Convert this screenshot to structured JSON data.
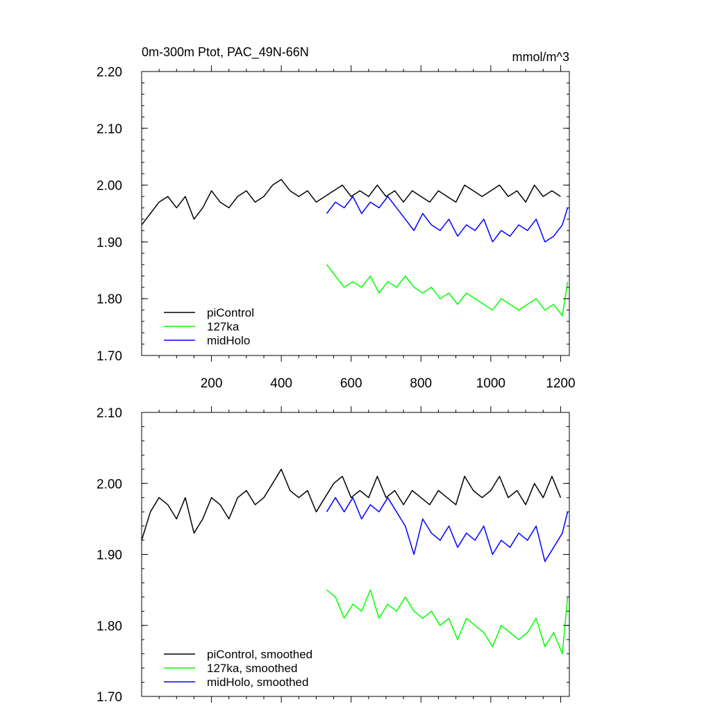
{
  "chart_data": [
    {
      "type": "line",
      "title": "0m-300m Ptot, PAC_49N-66N",
      "units": "mmol/m^3",
      "xlim": [
        0,
        1225
      ],
      "ylim": [
        1.7,
        2.2
      ],
      "xticks": [
        200,
        400,
        600,
        800,
        1000,
        1200
      ],
      "xtick_labels": [
        "200",
        "400",
        "600",
        "800",
        "1000",
        "1200"
      ],
      "yticks": [
        1.7,
        1.8,
        1.9,
        2.0,
        2.1,
        2.2
      ],
      "ytick_labels": [
        "1.70",
        "1.80",
        "1.90",
        "2.00",
        "2.10",
        "2.20"
      ],
      "legend": "bottom-left",
      "grid": false,
      "series": [
        {
          "name": "piControl",
          "color": "#000000",
          "x": [
            0,
            25,
            50,
            75,
            100,
            125,
            150,
            175,
            200,
            225,
            250,
            275,
            300,
            325,
            350,
            375,
            400,
            425,
            450,
            475,
            500,
            525,
            550,
            575,
            600,
            625,
            650,
            675,
            700,
            725,
            750,
            775,
            800,
            825,
            850,
            875,
            900,
            925,
            950,
            975,
            1000,
            1025,
            1050,
            1075,
            1100,
            1125,
            1150,
            1175,
            1200
          ],
          "y": [
            1.93,
            1.95,
            1.97,
            1.98,
            1.96,
            1.98,
            1.94,
            1.96,
            1.99,
            1.97,
            1.96,
            1.98,
            1.99,
            1.97,
            1.98,
            2.0,
            2.01,
            1.99,
            1.98,
            1.99,
            1.97,
            1.98,
            1.99,
            2.0,
            1.98,
            1.99,
            1.98,
            2.0,
            1.98,
            1.99,
            1.97,
            1.99,
            1.98,
            1.97,
            1.99,
            1.98,
            1.97,
            2.0,
            1.99,
            1.98,
            1.99,
            2.0,
            1.98,
            1.99,
            1.97,
            2.0,
            1.98,
            1.99,
            1.98
          ]
        },
        {
          "name": "127ka",
          "color": "#00ff00",
          "x": [
            530,
            555,
            580,
            605,
            630,
            655,
            680,
            705,
            730,
            755,
            780,
            805,
            830,
            855,
            880,
            905,
            930,
            955,
            980,
            1005,
            1030,
            1055,
            1080,
            1105,
            1130,
            1155,
            1180,
            1205,
            1220
          ],
          "y": [
            1.86,
            1.84,
            1.82,
            1.83,
            1.82,
            1.84,
            1.81,
            1.83,
            1.82,
            1.84,
            1.82,
            1.81,
            1.82,
            1.8,
            1.81,
            1.79,
            1.81,
            1.8,
            1.79,
            1.78,
            1.8,
            1.79,
            1.78,
            1.79,
            1.8,
            1.78,
            1.79,
            1.77,
            1.83
          ]
        },
        {
          "name": "midHolo",
          "color": "#0000ff",
          "x": [
            530,
            555,
            580,
            605,
            630,
            655,
            680,
            705,
            730,
            755,
            780,
            805,
            830,
            855,
            880,
            905,
            930,
            955,
            980,
            1005,
            1030,
            1055,
            1080,
            1105,
            1130,
            1155,
            1180,
            1205,
            1220
          ],
          "y": [
            1.95,
            1.97,
            1.96,
            1.98,
            1.95,
            1.97,
            1.96,
            1.98,
            1.96,
            1.94,
            1.92,
            1.95,
            1.93,
            1.92,
            1.94,
            1.91,
            1.93,
            1.92,
            1.94,
            1.9,
            1.92,
            1.91,
            1.93,
            1.92,
            1.94,
            1.9,
            1.91,
            1.93,
            1.96
          ]
        }
      ]
    },
    {
      "type": "line",
      "title": "",
      "units": "",
      "xlim": [
        0,
        1225
      ],
      "ylim": [
        1.7,
        2.1
      ],
      "xticks": [
        200,
        400,
        600,
        800,
        1000,
        1200
      ],
      "xtick_labels": [],
      "yticks": [
        1.7,
        1.8,
        1.9,
        2.0,
        2.1
      ],
      "ytick_labels": [
        "1.70",
        "1.80",
        "1.90",
        "2.00",
        "2.10"
      ],
      "legend": "bottom-left",
      "grid": false,
      "series": [
        {
          "name": "piControl, smoothed",
          "color": "#000000",
          "x": [
            0,
            25,
            50,
            75,
            100,
            125,
            150,
            175,
            200,
            225,
            250,
            275,
            300,
            325,
            350,
            375,
            400,
            425,
            450,
            475,
            500,
            525,
            550,
            575,
            600,
            625,
            650,
            675,
            700,
            725,
            750,
            775,
            800,
            825,
            850,
            875,
            900,
            925,
            950,
            975,
            1000,
            1025,
            1050,
            1075,
            1100,
            1125,
            1150,
            1175,
            1200
          ],
          "y": [
            1.92,
            1.96,
            1.98,
            1.97,
            1.95,
            1.98,
            1.93,
            1.95,
            1.98,
            1.97,
            1.95,
            1.98,
            1.99,
            1.97,
            1.98,
            2.0,
            2.02,
            1.99,
            1.98,
            1.99,
            1.96,
            1.98,
            2.0,
            2.01,
            1.98,
            1.99,
            1.98,
            2.01,
            1.98,
            1.99,
            1.97,
            1.99,
            1.98,
            1.97,
            1.99,
            1.98,
            1.97,
            2.01,
            1.99,
            1.98,
            1.99,
            2.01,
            1.98,
            1.99,
            1.97,
            2.0,
            1.98,
            2.01,
            1.98
          ]
        },
        {
          "name": "127ka, smoothed",
          "color": "#00ff00",
          "x": [
            530,
            555,
            580,
            605,
            630,
            655,
            680,
            705,
            730,
            755,
            780,
            805,
            830,
            855,
            880,
            905,
            930,
            955,
            980,
            1005,
            1030,
            1055,
            1080,
            1105,
            1130,
            1155,
            1180,
            1205,
            1220
          ],
          "y": [
            1.85,
            1.84,
            1.81,
            1.83,
            1.82,
            1.85,
            1.81,
            1.83,
            1.82,
            1.84,
            1.82,
            1.81,
            1.82,
            1.8,
            1.81,
            1.78,
            1.81,
            1.8,
            1.79,
            1.77,
            1.8,
            1.79,
            1.78,
            1.79,
            1.81,
            1.77,
            1.79,
            1.76,
            1.84
          ]
        },
        {
          "name": "midHolo, smoothed",
          "color": "#0000ff",
          "x": [
            530,
            555,
            580,
            605,
            630,
            655,
            680,
            705,
            730,
            755,
            780,
            805,
            830,
            855,
            880,
            905,
            930,
            955,
            980,
            1005,
            1030,
            1055,
            1080,
            1105,
            1130,
            1155,
            1180,
            1205,
            1220
          ],
          "y": [
            1.96,
            1.98,
            1.96,
            1.98,
            1.95,
            1.97,
            1.96,
            1.98,
            1.96,
            1.94,
            1.9,
            1.95,
            1.93,
            1.92,
            1.94,
            1.91,
            1.93,
            1.92,
            1.94,
            1.9,
            1.92,
            1.91,
            1.93,
            1.92,
            1.94,
            1.89,
            1.91,
            1.93,
            1.96
          ]
        }
      ]
    }
  ]
}
